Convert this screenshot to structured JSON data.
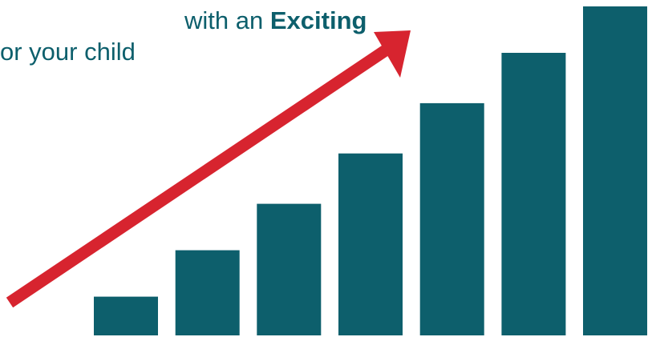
{
  "headline": {
    "line1_before": "with an",
    "line1_emphasis": "Exciting",
    "line2": "or your child"
  },
  "chart_data": {
    "type": "bar",
    "categories": [
      "",
      "",
      "",
      "",
      "",
      "",
      ""
    ],
    "values": [
      1,
      2.2,
      3.4,
      4.7,
      6,
      7.3,
      8.5
    ],
    "ylim": [
      0,
      8.5
    ],
    "grid": false
  },
  "colors": {
    "bars": "#0d5f6c",
    "arrow": "#d7242f",
    "text": "#0d5f6c"
  },
  "icons": {
    "arrow": "growth-arrow-icon"
  }
}
